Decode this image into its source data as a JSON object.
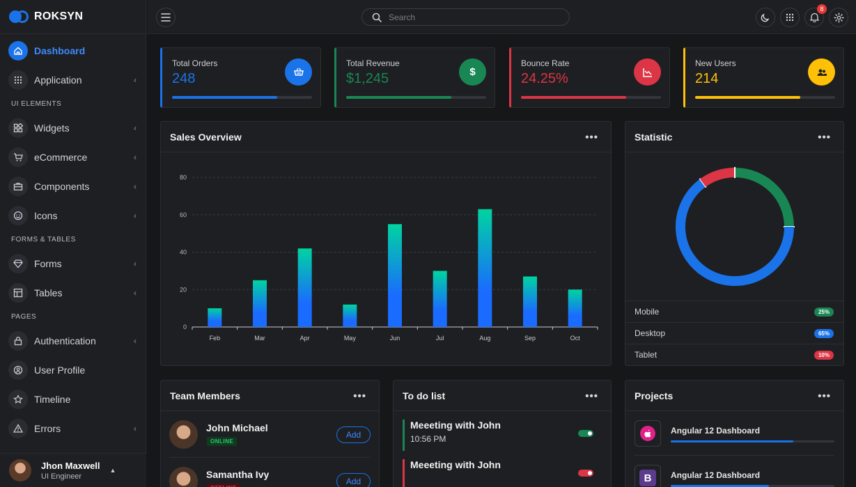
{
  "brand": {
    "name": "ROKSYN"
  },
  "sidebar": {
    "items": [
      {
        "label": "Dashboard",
        "active": true,
        "icon": "home-icon"
      },
      {
        "label": "Application",
        "icon": "grid-icon",
        "chevron": true
      },
      {
        "section": "UI ELEMENTS"
      },
      {
        "label": "Widgets",
        "icon": "widgets-icon",
        "chevron": true
      },
      {
        "label": "eCommerce",
        "icon": "cart-icon",
        "chevron": true
      },
      {
        "label": "Components",
        "icon": "briefcase-icon",
        "chevron": true
      },
      {
        "label": "Icons",
        "icon": "smiley-icon",
        "chevron": true
      },
      {
        "section": "FORMS & TABLES"
      },
      {
        "label": "Forms",
        "icon": "diamond-icon",
        "chevron": true
      },
      {
        "label": "Tables",
        "icon": "table-icon",
        "chevron": true
      },
      {
        "section": "PAGES"
      },
      {
        "label": "Authentication",
        "icon": "lock-icon",
        "chevron": true
      },
      {
        "label": "User Profile",
        "icon": "user-circle-icon"
      },
      {
        "label": "Timeline",
        "icon": "star-icon"
      },
      {
        "label": "Errors",
        "icon": "warning-icon",
        "chevron": true
      }
    ],
    "user": {
      "name": "Jhon Maxwell",
      "role": "UI Engineer"
    }
  },
  "topbar": {
    "search_placeholder": "Search",
    "notifications_count": "8"
  },
  "stats": [
    {
      "title": "Total Orders",
      "value": "248",
      "color": "#1a73e8",
      "icon": "basket-icon",
      "progress": 0.75
    },
    {
      "title": "Total Revenue",
      "value": "$1,245",
      "color": "#198754",
      "icon": "dollar-icon",
      "icon_text": "$",
      "progress": 0.75
    },
    {
      "title": "Bounce Rate",
      "value": "24.25%",
      "color": "#dc3545",
      "icon": "trend-chart-icon",
      "progress": 0.75
    },
    {
      "title": "New Users",
      "value": "214",
      "color": "#ffc107",
      "icon": "users-icon",
      "progress": 0.75
    }
  ],
  "sales": {
    "title": "Sales Overview"
  },
  "chart_data": [
    {
      "type": "bar",
      "title": "Sales Overview",
      "categories": [
        "Feb",
        "Mar",
        "Apr",
        "May",
        "Jun",
        "Jul",
        "Aug",
        "Sep",
        "Oct"
      ],
      "values": [
        10,
        25,
        42,
        12,
        55,
        30,
        63,
        27,
        20
      ],
      "ylim": [
        0,
        80
      ],
      "yticks": [
        0,
        20,
        40,
        60,
        80
      ],
      "grid": true,
      "colors": {
        "top": "#00d4a0",
        "bottom": "#1a6bff"
      }
    },
    {
      "type": "pie",
      "title": "Statistic",
      "labels": [
        "Mobile",
        "Desktop",
        "Tablet"
      ],
      "values": [
        25,
        65,
        10
      ],
      "colors": [
        "#198754",
        "#1a73e8",
        "#dc3545"
      ]
    }
  ],
  "statistic": {
    "title": "Statistic",
    "rows": [
      {
        "label": "Mobile",
        "pct": "25%",
        "color": "#198754"
      },
      {
        "label": "Desktop",
        "pct": "65%",
        "color": "#1a73e8"
      },
      {
        "label": "Tablet",
        "pct": "10%",
        "color": "#dc3545"
      }
    ]
  },
  "team": {
    "title": "Team Members",
    "members": [
      {
        "name": "John Michael",
        "status": "ONLINE",
        "action": "Add"
      },
      {
        "name": "Samantha Ivy",
        "status": "OFFLINE",
        "action": "Add"
      }
    ]
  },
  "todo": {
    "title": "To do list",
    "items": [
      {
        "title": "Meeeting with John",
        "time": "10:56 PM",
        "color": "#198754"
      },
      {
        "title": "Meeeting with John",
        "time": "",
        "color": "#dc3545"
      }
    ]
  },
  "projects": {
    "title": "Projects",
    "items": [
      {
        "name": "Angular 12 Dashboard",
        "progress": 0.75,
        "icon": "apple-icon"
      },
      {
        "name": "Angular 12 Dashboard",
        "progress": 0.6,
        "icon": "bootstrap-icon",
        "icon_text": "B"
      }
    ]
  }
}
